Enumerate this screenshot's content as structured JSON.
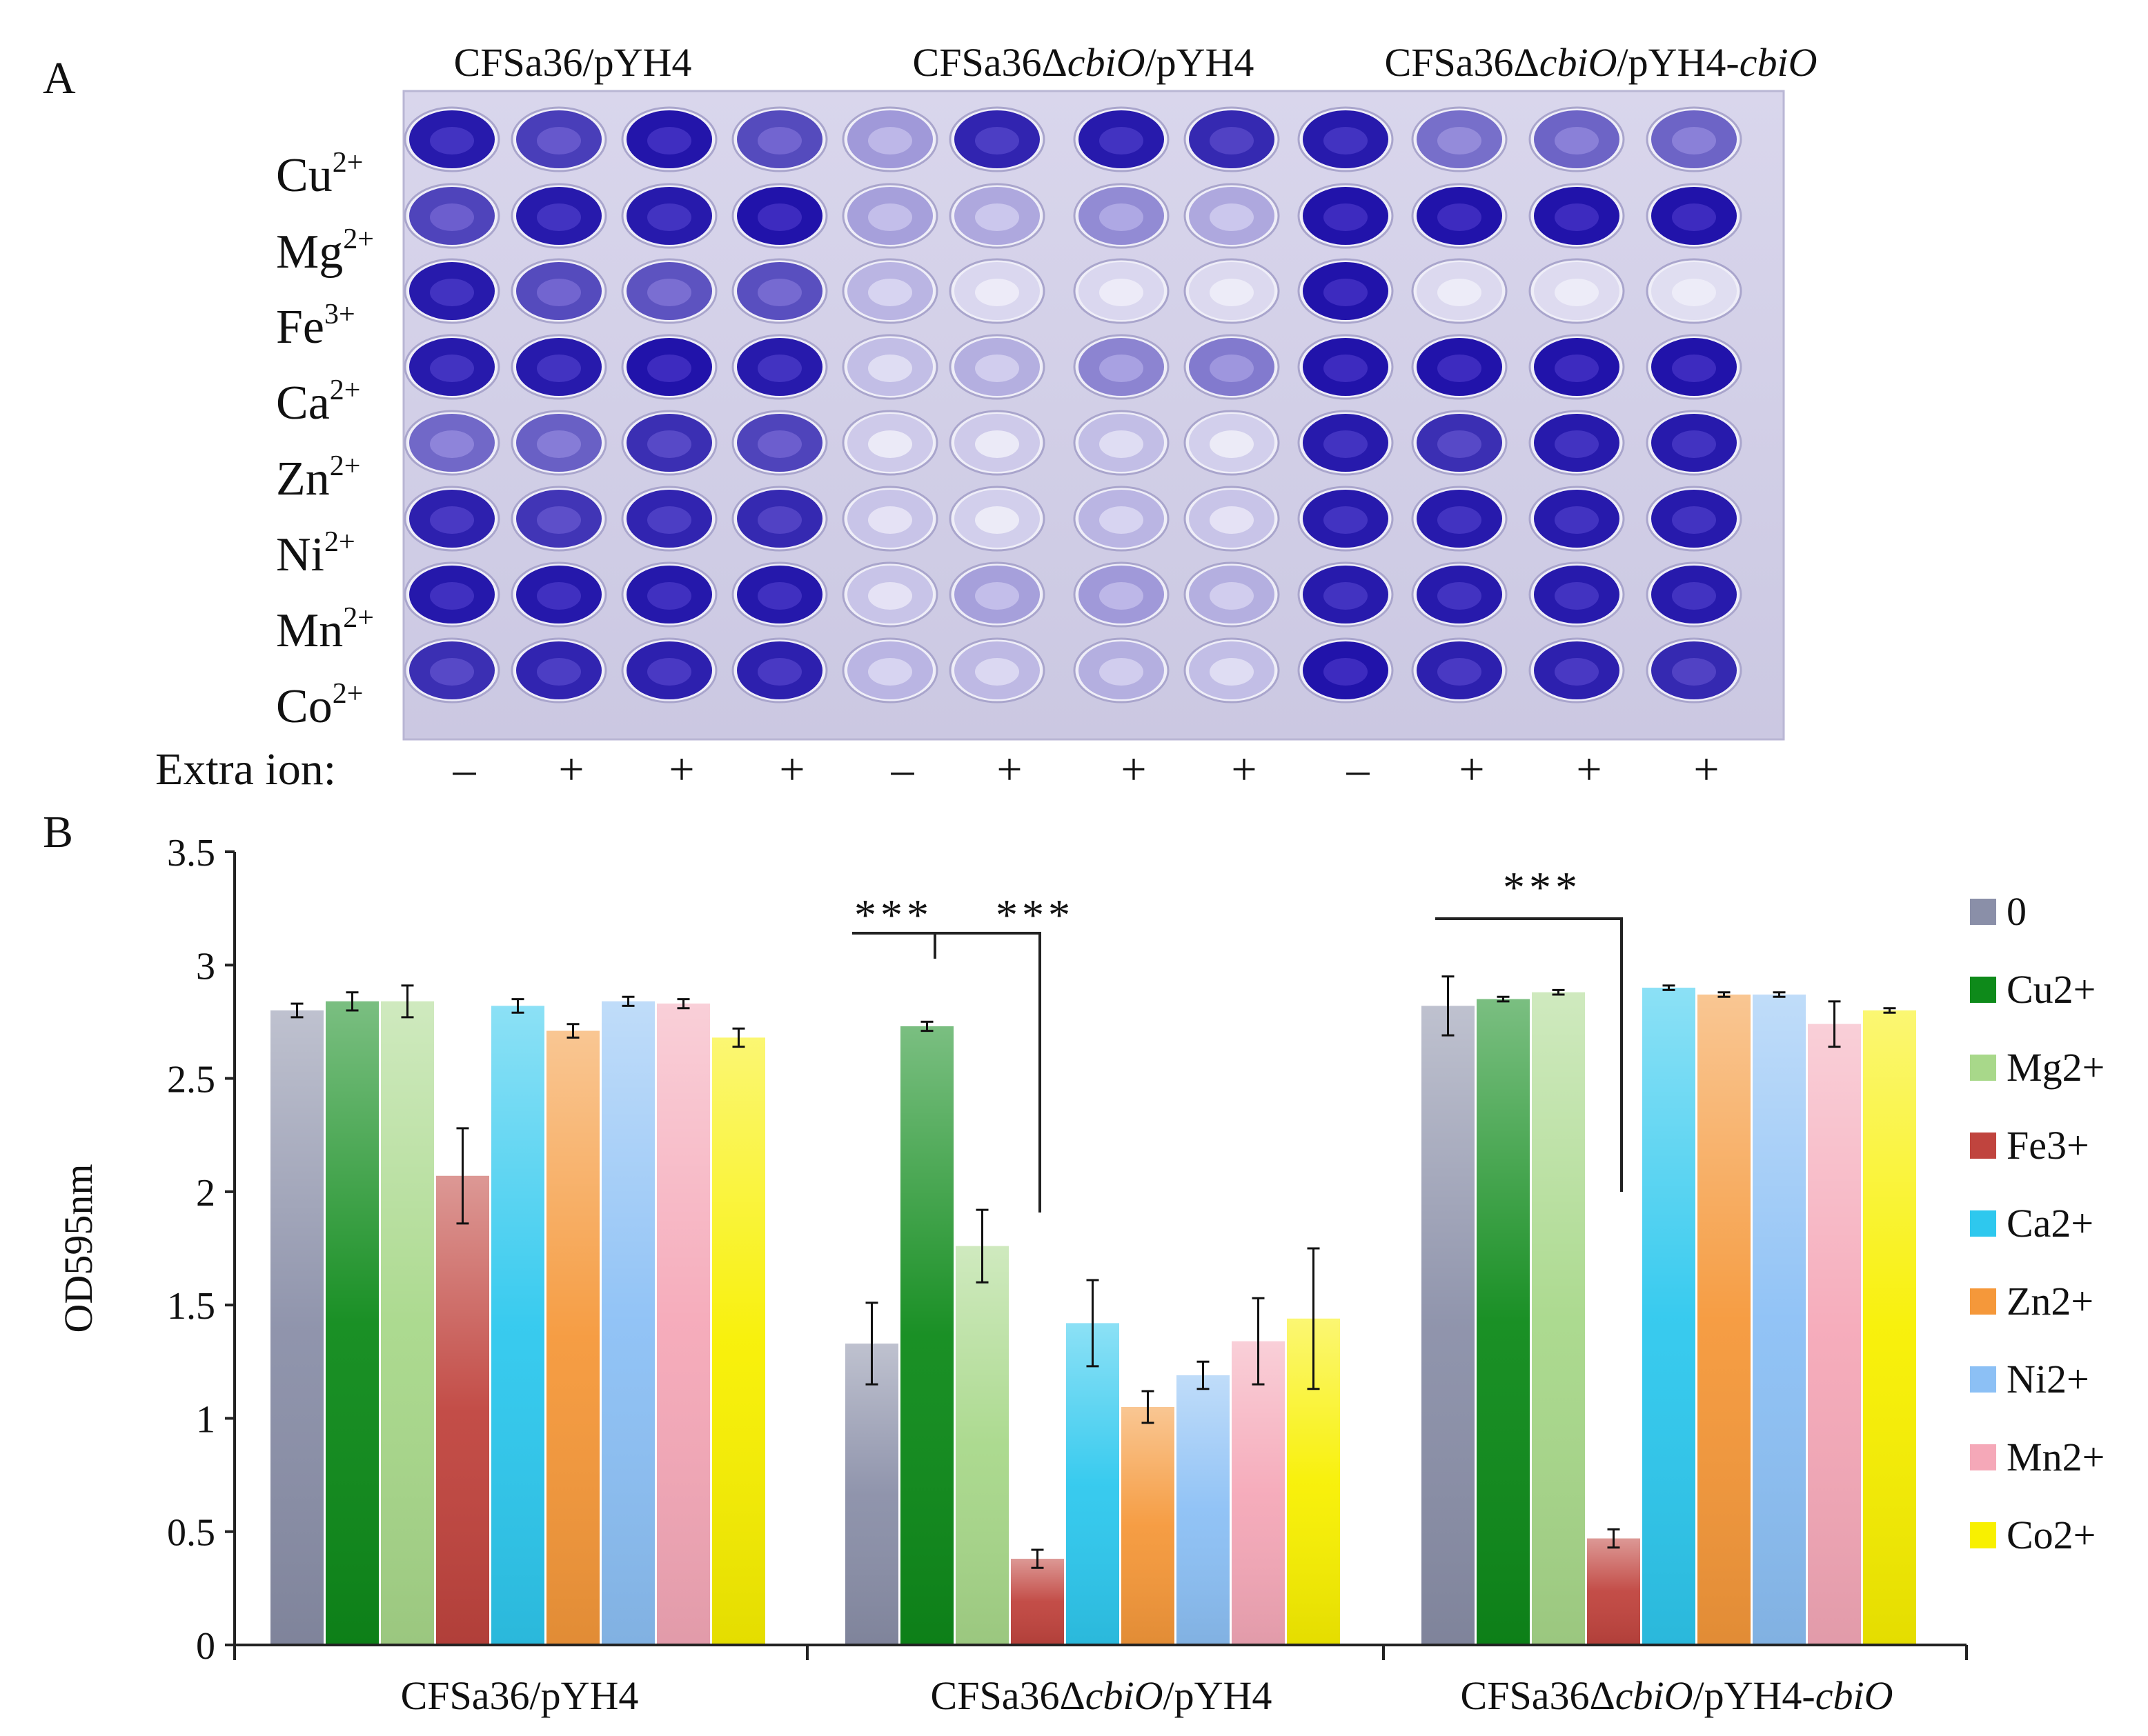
{
  "panel_a": {
    "label": "A",
    "groups": [
      {
        "prefix": "CFSa36",
        "italic": "",
        "suffix": "/pYH4",
        "italic2": ""
      },
      {
        "prefix": "CFSa36Δ",
        "italic": "cbiO",
        "suffix": "/pYH4",
        "italic2": ""
      },
      {
        "prefix": "CFSa36Δ",
        "italic": "cbiO",
        "suffix": "/pYH4-",
        "italic2": "cbiO"
      }
    ],
    "rows": [
      {
        "base": "Cu",
        "sup": "2+"
      },
      {
        "base": "Mg",
        "sup": "2+"
      },
      {
        "base": "Fe",
        "sup": "3+"
      },
      {
        "base": "Ca",
        "sup": "2+"
      },
      {
        "base": "Zn",
        "sup": "2+"
      },
      {
        "base": "Ni",
        "sup": "2+"
      },
      {
        "base": "Mn",
        "sup": "2+"
      },
      {
        "base": "Co",
        "sup": "2+"
      }
    ],
    "extra_ion_label": "Extra ion:",
    "extra_ion_signs": [
      "–",
      "+",
      "+",
      "+",
      "–",
      "+",
      "+",
      "+",
      "–",
      "+",
      "+",
      "+"
    ],
    "stain_intensity": [
      [
        0.95,
        0.78,
        0.97,
        0.72,
        0.35,
        0.9,
        0.95,
        0.88,
        0.95,
        0.55,
        0.6,
        0.6
      ],
      [
        0.75,
        0.95,
        0.95,
        0.98,
        0.32,
        0.28,
        0.42,
        0.28,
        0.98,
        0.98,
        0.98,
        0.98
      ],
      [
        0.95,
        0.72,
        0.68,
        0.7,
        0.22,
        0.06,
        0.06,
        0.05,
        0.98,
        0.05,
        0.04,
        0.03
      ],
      [
        0.95,
        0.95,
        0.98,
        0.95,
        0.18,
        0.25,
        0.45,
        0.5,
        0.98,
        0.98,
        0.98,
        0.98
      ],
      [
        0.58,
        0.62,
        0.85,
        0.75,
        0.12,
        0.12,
        0.18,
        0.1,
        0.95,
        0.85,
        0.95,
        0.95
      ],
      [
        0.92,
        0.82,
        0.9,
        0.88,
        0.15,
        0.1,
        0.22,
        0.15,
        0.95,
        0.95,
        0.95,
        0.95
      ],
      [
        0.96,
        0.96,
        0.96,
        0.96,
        0.15,
        0.32,
        0.35,
        0.25,
        0.95,
        0.95,
        0.95,
        0.95
      ],
      [
        0.85,
        0.9,
        0.92,
        0.92,
        0.22,
        0.2,
        0.25,
        0.18,
        0.98,
        0.92,
        0.92,
        0.88
      ]
    ]
  },
  "panel_b": {
    "label": "B",
    "chart_data": {
      "type": "bar",
      "ylabel": "OD595nm",
      "xlabel": "",
      "ylim": [
        0,
        3.5
      ],
      "yticks": [
        0,
        0.5,
        1,
        1.5,
        2,
        2.5,
        3,
        3.5
      ],
      "ytick_labels": [
        "0",
        "0.5",
        "1",
        "1.5",
        "2",
        "2.5",
        "3",
        "3.5"
      ],
      "categories": [
        {
          "prefix": "CFSa36",
          "italic": "",
          "suffix": "/pYH4",
          "italic2": ""
        },
        {
          "prefix": "CFSa36Δ",
          "italic": "cbiO",
          "suffix": "/pYH4",
          "italic2": ""
        },
        {
          "prefix": "CFSa36Δ",
          "italic": "cbiO",
          "suffix": "/pYH4-",
          "italic2": "cbiO"
        }
      ],
      "series": [
        {
          "name": "0",
          "color": "#8a8fa8",
          "values": [
            2.8,
            1.33,
            2.82
          ],
          "errors": [
            0.03,
            0.18,
            0.13
          ]
        },
        {
          "name": "Cu2+",
          "color": "#0e8a1a",
          "values": [
            2.84,
            2.73,
            2.85
          ],
          "errors": [
            0.04,
            0.02,
            0.01
          ]
        },
        {
          "name": "Mg2+",
          "color": "#a8d88a",
          "values": [
            2.84,
            1.76,
            2.88
          ],
          "errors": [
            0.07,
            0.16,
            0.01
          ]
        },
        {
          "name": "Fe3+",
          "color": "#c0443e",
          "values": [
            2.07,
            0.38,
            0.47
          ],
          "errors": [
            0.21,
            0.04,
            0.04
          ]
        },
        {
          "name": "Ca2+",
          "color": "#2ec8ee",
          "values": [
            2.82,
            1.42,
            2.9
          ],
          "errors": [
            0.03,
            0.19,
            0.01
          ]
        },
        {
          "name": "Zn2+",
          "color": "#f5983a",
          "values": [
            2.71,
            1.05,
            2.87
          ],
          "errors": [
            0.03,
            0.07,
            0.01
          ]
        },
        {
          "name": "Ni2+",
          "color": "#8cc0f5",
          "values": [
            2.84,
            1.19,
            2.87
          ],
          "errors": [
            0.02,
            0.06,
            0.01
          ]
        },
        {
          "name": "Mn2+",
          "color": "#f5a8b8",
          "values": [
            2.83,
            1.34,
            2.74
          ],
          "errors": [
            0.02,
            0.19,
            0.1
          ]
        },
        {
          "name": "Co2+",
          "color": "#f8f000",
          "values": [
            2.68,
            1.44,
            2.8
          ],
          "errors": [
            0.04,
            0.31,
            0.01
          ]
        }
      ],
      "significance": [
        {
          "label": "***"
        },
        {
          "label": "***"
        },
        {
          "label": "***"
        }
      ]
    }
  }
}
